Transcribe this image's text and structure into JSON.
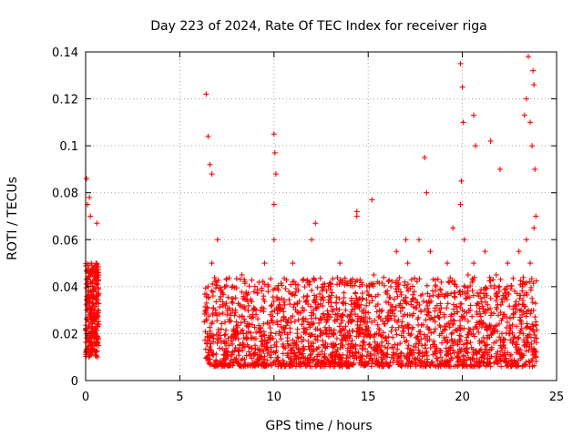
{
  "chart_data": {
    "type": "scatter",
    "title": "Day 223 of 2024, Rate Of TEC Index for receiver riga",
    "xlabel": "GPS time / hours",
    "ylabel": "ROTI / TECUs",
    "xlim": [
      0,
      25
    ],
    "ylim": [
      0,
      0.14
    ],
    "x_ticks": [
      "0",
      "5",
      "10",
      "15",
      "20",
      "25"
    ],
    "y_ticks": [
      "0",
      "0.02",
      "0.04",
      "0.06",
      "0.08",
      "0.1",
      "0.12",
      "0.14"
    ],
    "grid": true,
    "marker": "plus",
    "color": "#ff0000",
    "series": [
      {
        "x": [
          0.05,
          0.1,
          0.15,
          0.2,
          0.25,
          0.3,
          0.35,
          0.4,
          0.45,
          0.5,
          0.55,
          0.6,
          0.65,
          0.1,
          0.2,
          0.3,
          0.5,
          0.6,
          0.05,
          0.15,
          0.25,
          0.35,
          0.45,
          0.55,
          0.05,
          0.2,
          0.25,
          0.6,
          6.3,
          6.4,
          6.5,
          6.6,
          6.7,
          6.8,
          6.9,
          7.0,
          7.2,
          7.4,
          7.6,
          7.8,
          8.0,
          8.3,
          8.6,
          8.9,
          9.2,
          9.5,
          9.8,
          10.0,
          10.1,
          10.4,
          10.7,
          11.0,
          11.3,
          11.6,
          12.0,
          12.3,
          12.6,
          12.9,
          13.2,
          13.5,
          13.8,
          14.1,
          14.4,
          14.7,
          15.0,
          15.3,
          15.6,
          15.9,
          16.2,
          16.5,
          16.8,
          17.1,
          17.4,
          17.7,
          18.0,
          18.3,
          18.6,
          18.9,
          19.2,
          19.5,
          19.7,
          19.9,
          20.0,
          20.1,
          20.3,
          20.6,
          20.9,
          21.2,
          21.5,
          21.8,
          22.1,
          22.4,
          22.7,
          23.0,
          23.2,
          23.4,
          23.5,
          23.6,
          23.7,
          23.8,
          23.9,
          6.4,
          6.5,
          6.6,
          6.7,
          10.0,
          10.05,
          10.1,
          10.0,
          18.0,
          18.1,
          19.9,
          20.0,
          20.05,
          19.95,
          20.6,
          20.7,
          23.3,
          23.4,
          23.5,
          23.6,
          23.7,
          23.75,
          23.8,
          23.85,
          23.9,
          21.5,
          22.0,
          17.0,
          14.4,
          15.2,
          12.2
        ],
        "y": [
          0.02,
          0.03,
          0.025,
          0.018,
          0.045,
          0.022,
          0.015,
          0.028,
          0.02,
          0.048,
          0.035,
          0.019,
          0.03,
          0.075,
          0.078,
          0.05,
          0.012,
          0.045,
          0.086,
          0.04,
          0.015,
          0.033,
          0.025,
          0.02,
          0.012,
          0.028,
          0.07,
          0.067,
          0.025,
          0.03,
          0.04,
          0.02,
          0.05,
          0.018,
          0.03,
          0.06,
          0.022,
          0.04,
          0.015,
          0.03,
          0.025,
          0.045,
          0.018,
          0.03,
          0.022,
          0.05,
          0.028,
          0.06,
          0.02,
          0.035,
          0.025,
          0.05,
          0.018,
          0.03,
          0.06,
          0.022,
          0.04,
          0.028,
          0.015,
          0.05,
          0.03,
          0.025,
          0.07,
          0.035,
          0.02,
          0.045,
          0.03,
          0.018,
          0.04,
          0.055,
          0.025,
          0.05,
          0.035,
          0.06,
          0.03,
          0.055,
          0.04,
          0.02,
          0.05,
          0.065,
          0.04,
          0.075,
          0.03,
          0.06,
          0.045,
          0.05,
          0.025,
          0.055,
          0.035,
          0.045,
          0.02,
          0.05,
          0.028,
          0.055,
          0.04,
          0.06,
          0.03,
          0.05,
          0.035,
          0.065,
          0.025,
          0.122,
          0.104,
          0.092,
          0.088,
          0.105,
          0.097,
          0.088,
          0.075,
          0.095,
          0.08,
          0.135,
          0.125,
          0.11,
          0.085,
          0.113,
          0.1,
          0.113,
          0.12,
          0.138,
          0.11,
          0.1,
          0.132,
          0.126,
          0.09,
          0.07,
          0.102,
          0.09,
          0.06,
          0.072,
          0.077,
          0.067
        ]
      }
    ]
  }
}
